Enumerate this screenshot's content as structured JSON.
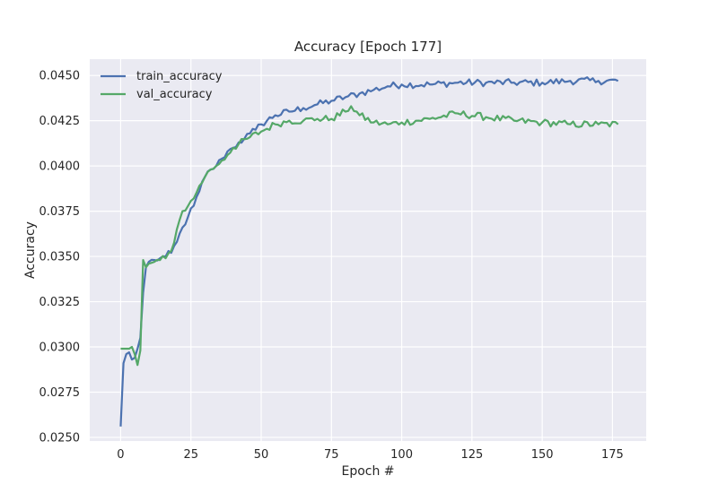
{
  "chart_data": {
    "type": "line",
    "title": "Accuracy [Epoch 177]",
    "xlabel": "Epoch #",
    "ylabel": "Accuracy",
    "xlim": [
      -11,
      187
    ],
    "ylim": [
      0.0248,
      0.0459
    ],
    "xticks": [
      0,
      25,
      50,
      75,
      100,
      125,
      150,
      175
    ],
    "yticks": [
      0.025,
      0.0275,
      0.03,
      0.0325,
      0.035,
      0.0375,
      0.04,
      0.0425,
      0.045
    ],
    "ytick_labels": [
      "0.0250",
      "0.0275",
      "0.0300",
      "0.0325",
      "0.0350",
      "0.0375",
      "0.0400",
      "0.0425",
      "0.0450"
    ],
    "grid": true,
    "legend_position": "top-left",
    "background": "#eaeaf2",
    "series": [
      {
        "name": "train_accuracy",
        "color": "#4c72b0",
        "keypoints": [
          [
            0,
            0.0256
          ],
          [
            1,
            0.0291
          ],
          [
            2,
            0.0296
          ],
          [
            3,
            0.0297
          ],
          [
            4,
            0.0293
          ],
          [
            5,
            0.0294
          ],
          [
            6,
            0.0299
          ],
          [
            7,
            0.0305
          ],
          [
            8,
            0.033
          ],
          [
            9,
            0.0344
          ],
          [
            10,
            0.0347
          ],
          [
            12,
            0.0348
          ],
          [
            14,
            0.0349
          ],
          [
            16,
            0.035
          ],
          [
            18,
            0.0352
          ],
          [
            20,
            0.0358
          ],
          [
            22,
            0.0366
          ],
          [
            24,
            0.0372
          ],
          [
            26,
            0.0378
          ],
          [
            28,
            0.0386
          ],
          [
            30,
            0.0394
          ],
          [
            32,
            0.0398
          ],
          [
            34,
            0.04
          ],
          [
            36,
            0.0404
          ],
          [
            38,
            0.0408
          ],
          [
            40,
            0.041
          ],
          [
            42,
            0.0413
          ],
          [
            44,
            0.0415
          ],
          [
            46,
            0.0418
          ],
          [
            48,
            0.042
          ],
          [
            50,
            0.0423
          ],
          [
            55,
            0.0428
          ],
          [
            60,
            0.043
          ],
          [
            65,
            0.0432
          ],
          [
            70,
            0.0434
          ],
          [
            75,
            0.0436
          ],
          [
            80,
            0.0438
          ],
          [
            85,
            0.044
          ],
          [
            90,
            0.0442
          ],
          [
            95,
            0.0444
          ],
          [
            100,
            0.0445
          ],
          [
            110,
            0.0445
          ],
          [
            120,
            0.0446
          ],
          [
            130,
            0.0446
          ],
          [
            140,
            0.0446
          ],
          [
            150,
            0.0446
          ],
          [
            160,
            0.0447
          ],
          [
            170,
            0.0447
          ],
          [
            177,
            0.0447
          ]
        ],
        "noise": 0.0004
      },
      {
        "name": "val_accuracy",
        "color": "#55a868",
        "keypoints": [
          [
            0,
            0.0299
          ],
          [
            1,
            0.0299
          ],
          [
            2,
            0.0299
          ],
          [
            3,
            0.0299
          ],
          [
            4,
            0.03
          ],
          [
            5,
            0.0296
          ],
          [
            6,
            0.029
          ],
          [
            7,
            0.0298
          ],
          [
            8,
            0.0348
          ],
          [
            9,
            0.0344
          ],
          [
            10,
            0.0346
          ],
          [
            12,
            0.0347
          ],
          [
            14,
            0.0348
          ],
          [
            16,
            0.0349
          ],
          [
            18,
            0.0353
          ],
          [
            20,
            0.0365
          ],
          [
            22,
            0.0375
          ],
          [
            24,
            0.0378
          ],
          [
            26,
            0.0382
          ],
          [
            28,
            0.0389
          ],
          [
            30,
            0.0394
          ],
          [
            32,
            0.0398
          ],
          [
            34,
            0.04
          ],
          [
            36,
            0.0403
          ],
          [
            38,
            0.0406
          ],
          [
            40,
            0.041
          ],
          [
            45,
            0.0415
          ],
          [
            50,
            0.0419
          ],
          [
            55,
            0.0423
          ],
          [
            60,
            0.0425
          ],
          [
            65,
            0.0425
          ],
          [
            70,
            0.0426
          ],
          [
            75,
            0.0426
          ],
          [
            80,
            0.043
          ],
          [
            82,
            0.0433
          ],
          [
            85,
            0.0428
          ],
          [
            90,
            0.0424
          ],
          [
            95,
            0.0423
          ],
          [
            100,
            0.0424
          ],
          [
            110,
            0.0426
          ],
          [
            120,
            0.0429
          ],
          [
            130,
            0.0427
          ],
          [
            140,
            0.0425
          ],
          [
            150,
            0.0424
          ],
          [
            160,
            0.0423
          ],
          [
            170,
            0.0423
          ],
          [
            177,
            0.0423
          ]
        ],
        "noise": 0.0004
      }
    ]
  }
}
